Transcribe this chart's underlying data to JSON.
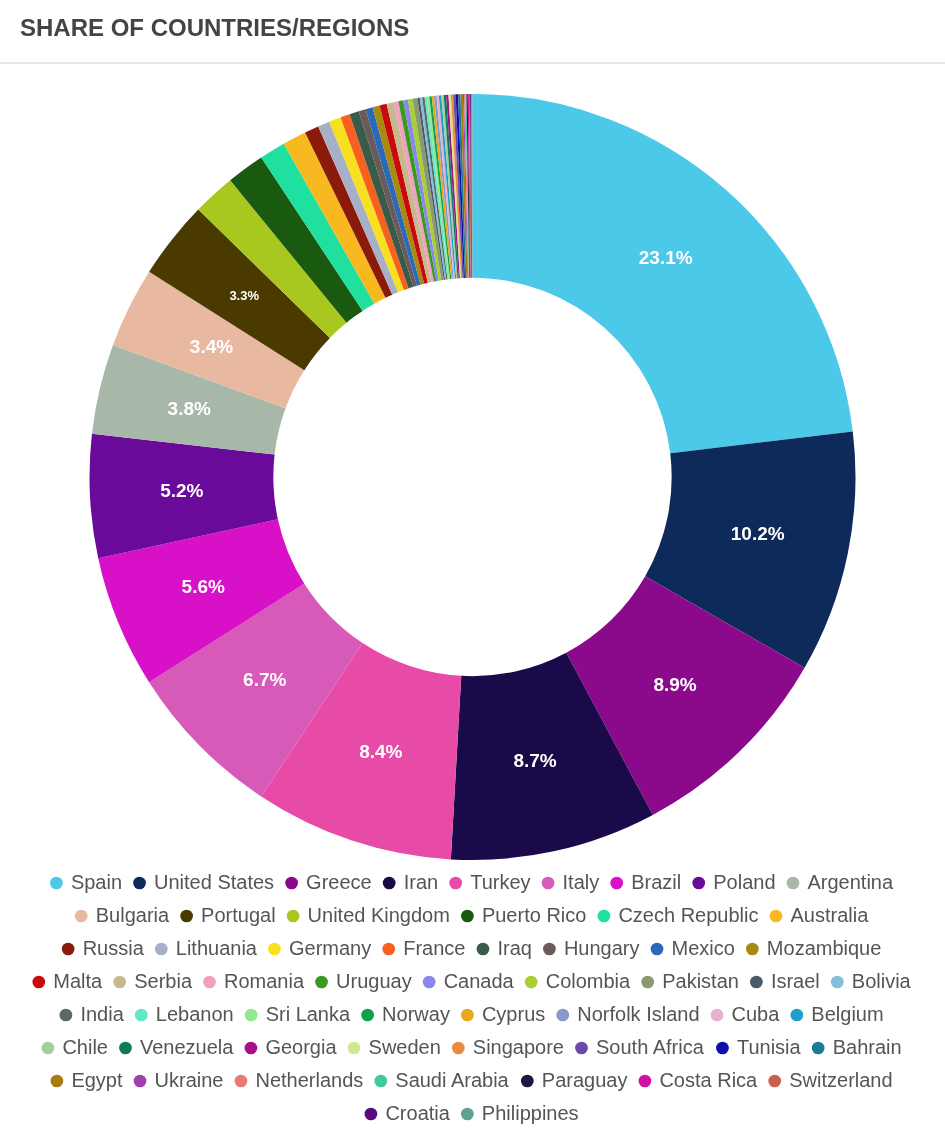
{
  "chart_data": {
    "type": "donut",
    "title": "SHARE OF COUNTRIES/REGIONS",
    "categories": [
      "Spain",
      "United States",
      "Greece",
      "Iran",
      "Turkey",
      "Italy",
      "Brazil",
      "Poland",
      "Argentina",
      "Bulgaria",
      "Portugal",
      "United Kingdom",
      "Puerto Rico",
      "Czech Republic",
      "Australia",
      "Russia",
      "Lithuania",
      "Germany",
      "France",
      "Iraq",
      "Hungary",
      "Mexico",
      "Mozambique",
      "Malta",
      "Serbia",
      "Romania",
      "Uruguay",
      "Canada",
      "Colombia",
      "Pakistan",
      "Israel",
      "Bolivia",
      "India",
      "Lebanon",
      "Sri Lanka",
      "Norway",
      "Cyprus",
      "Norfolk Island",
      "Cuba",
      "Belgium",
      "Chile",
      "Venezuela",
      "Georgia",
      "Sweden",
      "Singapore",
      "South Africa",
      "Tunisia",
      "Bahrain",
      "Egypt",
      "Ukraine",
      "Netherlands",
      "Saudi Arabia",
      "Paraguay",
      "Costa Rica",
      "Switzerland",
      "Croatia",
      "Philippines"
    ],
    "values": [
      23.1,
      10.2,
      8.9,
      8.7,
      8.4,
      6.7,
      5.6,
      5.2,
      3.8,
      3.4,
      3.3,
      1.8,
      1.6,
      1.1,
      1.0,
      0.6,
      0.5,
      0.5,
      0.4,
      0.4,
      0.3,
      0.3,
      0.3,
      0.3,
      0.3,
      0.2,
      0.2,
      0.2,
      0.2,
      0.2,
      0.1,
      0.1,
      0.1,
      0.1,
      0.1,
      0.1,
      0.1,
      0.1,
      0.1,
      0.1,
      0.1,
      0.1,
      0.1,
      0.1,
      0.1,
      0.1,
      0.1,
      0.1,
      0.1,
      0.05,
      0.05,
      0.05,
      0.05,
      0.05,
      0.05,
      0.05,
      0.05
    ],
    "value_labels": [
      "23.1%",
      "10.2%",
      "8.9%",
      "8.7%",
      "8.4%",
      "6.7%",
      "5.6%",
      "5.2%",
      "3.8%",
      "3.4%",
      "3.3%",
      null,
      null,
      null,
      null,
      null,
      null,
      null,
      null,
      null,
      null,
      null,
      null,
      null,
      null,
      null,
      null,
      null,
      null,
      null,
      null,
      null,
      null,
      null,
      null,
      null,
      null,
      null,
      null,
      null,
      null,
      null,
      null,
      null,
      null,
      null,
      null,
      null,
      null,
      null,
      null,
      null,
      null,
      null,
      null,
      null,
      null
    ],
    "colors": [
      "#4cc9e8",
      "#0d2a5a",
      "#8b0a8b",
      "#1a0a4a",
      "#e84aa8",
      "#d85ab8",
      "#d810c8",
      "#6a0a9a",
      "#a8b8a8",
      "#e8b8a0",
      "#4a3a00",
      "#a8c820",
      "#1a5a10",
      "#20e0a0",
      "#f8b820",
      "#8a1a0a",
      "#a8b0c8",
      "#f8e020",
      "#f86020",
      "#3a5a4a",
      "#6a5a5a",
      "#2a6ab8",
      "#a88a10",
      "#c80a0a",
      "#c8b890",
      "#f0a0c0",
      "#3a9a20",
      "#8888e8",
      "#a8d030",
      "#8a9a70",
      "#4a5a6a",
      "#80c0d8",
      "#5a6a60",
      "#60e8c8",
      "#90e890",
      "#10a050",
      "#e8a820",
      "#8898c8",
      "#e8b0d0",
      "#20a0c8",
      "#a0d0a0",
      "#107a5a",
      "#a8108a",
      "#d0e890",
      "#e88a40",
      "#6a4aa8",
      "#1010a8",
      "#1a7a9a",
      "#a87a10",
      "#a040b0",
      "#e87a7a",
      "#40c8a0",
      "#1a1a3a",
      "#d010a0",
      "#c86050",
      "#5a0a7a",
      "#60a090"
    ],
    "legend": "bottom"
  }
}
